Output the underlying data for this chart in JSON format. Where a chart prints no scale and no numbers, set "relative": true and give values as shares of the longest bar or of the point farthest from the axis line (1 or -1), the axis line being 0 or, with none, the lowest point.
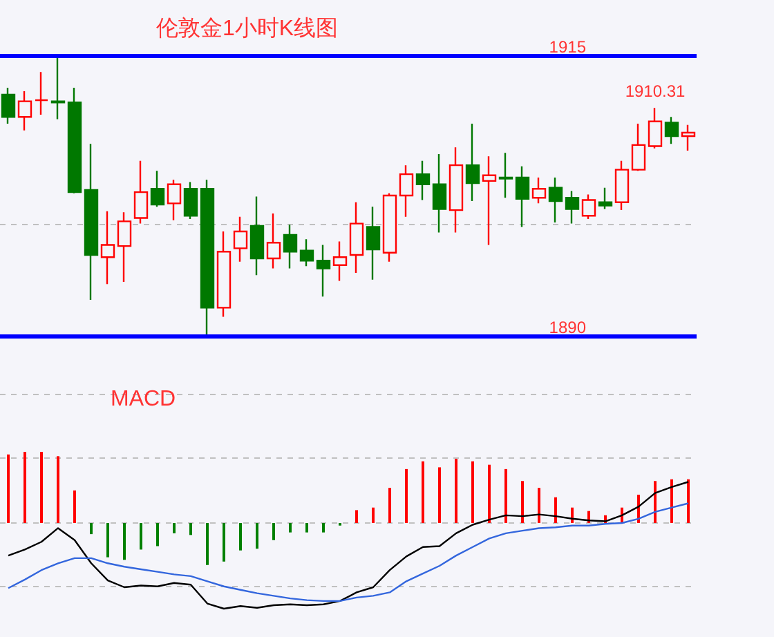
{
  "chart_data": [
    {
      "type": "candlestick",
      "title": "伦敦金1小时K线图",
      "categories": [
        null,
        null,
        null,
        null,
        null,
        null,
        null,
        null,
        null,
        null,
        null,
        null,
        null,
        null,
        null,
        null,
        null,
        null,
        null,
        null,
        null,
        null,
        null,
        null,
        null,
        null,
        null,
        null,
        null,
        null,
        null,
        null,
        null,
        null,
        null,
        null,
        null,
        null,
        null,
        null,
        null,
        null
      ],
      "ohlc": [
        [
          1911.5,
          1912.1,
          1908.9,
          1909.5
        ],
        [
          1909.5,
          1911.8,
          1908.3,
          1910.9
        ],
        [
          1911.0,
          1913.5,
          1909.7,
          1911.0
        ],
        [
          1910.9,
          1914.9,
          1909.3,
          1910.8
        ],
        [
          1910.8,
          1912.1,
          1902.7,
          1902.8
        ],
        [
          1903.0,
          1907.1,
          1893.2,
          1897.2
        ],
        [
          1897.0,
          1901.1,
          1894.6,
          1898.1
        ],
        [
          1898.0,
          1901.0,
          1894.8,
          1900.2
        ],
        [
          1900.5,
          1905.6,
          1900.0,
          1902.8
        ],
        [
          1903.1,
          1904.7,
          1901.5,
          1901.7
        ],
        [
          1901.8,
          1903.9,
          1900.3,
          1903.5
        ],
        [
          1903.1,
          1903.7,
          1900.4,
          1900.7
        ],
        [
          1903.1,
          1903.9,
          1890.0,
          1892.5
        ],
        [
          1892.5,
          1899.3,
          1891.7,
          1897.5
        ],
        [
          1897.8,
          1900.6,
          1896.6,
          1899.3
        ],
        [
          1899.8,
          1902.4,
          1895.4,
          1896.9
        ],
        [
          1896.9,
          1900.9,
          1896.0,
          1898.3
        ],
        [
          1899.0,
          1899.9,
          1896.0,
          1897.5
        ],
        [
          1897.6,
          1898.6,
          1896.2,
          1896.7
        ],
        [
          1896.7,
          1898.1,
          1893.5,
          1896.0
        ],
        [
          1896.3,
          1898.4,
          1894.9,
          1897.0
        ],
        [
          1897.2,
          1901.9,
          1895.6,
          1900.0
        ],
        [
          1899.7,
          1901.5,
          1895.0,
          1897.7
        ],
        [
          1897.4,
          1902.7,
          1896.6,
          1902.5
        ],
        [
          1902.5,
          1905.2,
          1900.6,
          1904.4
        ],
        [
          1904.4,
          1905.6,
          1902.1,
          1903.5
        ],
        [
          1903.5,
          1906.2,
          1899.2,
          1901.3
        ],
        [
          1901.2,
          1906.8,
          1899.2,
          1905.2
        ],
        [
          1905.2,
          1908.9,
          1902.0,
          1903.6
        ],
        [
          1903.8,
          1906.0,
          1898.1,
          1904.3
        ],
        [
          1904.1,
          1906.3,
          1902.3,
          1904.0
        ],
        [
          1904.1,
          1905.1,
          1899.7,
          1902.2
        ],
        [
          1902.3,
          1904.1,
          1901.8,
          1903.1
        ],
        [
          1903.2,
          1904.1,
          1900.1,
          1902.0
        ],
        [
          1902.3,
          1902.9,
          1900.0,
          1901.3
        ],
        [
          1900.7,
          1902.6,
          1900.4,
          1902.1
        ],
        [
          1901.9,
          1903.2,
          1901.3,
          1901.6
        ],
        [
          1901.9,
          1905.6,
          1901.2,
          1904.8
        ],
        [
          1904.8,
          1908.9,
          1904.7,
          1907.0
        ],
        [
          1906.9,
          1910.31,
          1906.7,
          1909.1
        ],
        [
          1909.0,
          1909.5,
          1907.1,
          1907.8
        ],
        [
          1907.8,
          1908.8,
          1906.5,
          1908.1
        ]
      ],
      "colors": [
        "#007800",
        "#ff0000",
        "#ff0000",
        "#007800",
        "#007800",
        "#007800",
        "#ff0000",
        "#ff0000",
        "#ff0000",
        "#007800",
        "#ff0000",
        "#007800",
        "#007800",
        "#ff0000",
        "#ff0000",
        "#007800",
        "#ff0000",
        "#007800",
        "#007800",
        "#007800",
        "#ff0000",
        "#ff0000",
        "#007800",
        "#ff0000",
        "#ff0000",
        "#007800",
        "#007800",
        "#ff0000",
        "#007800",
        "#ff0000",
        "#007800",
        "#007800",
        "#ff0000",
        "#007800",
        "#007800",
        "#ff0000",
        "#007800",
        "#ff0000",
        "#ff0000",
        "#ff0000",
        "#007800",
        "#ff0000"
      ],
      "ylim": [
        1890,
        1915
      ],
      "yticks": [
        {
          "value": 1900,
          "label": null
        }
      ],
      "grid": "y",
      "tick_labels": false,
      "ref_lines": [
        {
          "axis": "y",
          "value": 1915,
          "label": "1915",
          "color": "#0000ff"
        },
        {
          "axis": "y",
          "value": 1890,
          "label": "1890",
          "color": "#0000ff"
        }
      ],
      "annotations": [
        {
          "text": "1910.31",
          "y": 1910.31
        }
      ]
    },
    {
      "type": "bar",
      "title": "MACD",
      "relative": true,
      "tick_labels": false,
      "marker": "none",
      "ref_lines": [
        {
          "axis": "y",
          "value": 1.5,
          "color": "#c0c0c0",
          "line_style": "dashed"
        },
        {
          "axis": "y",
          "value": 0.76,
          "color": "#c0c0c0",
          "line_style": "dashed"
        },
        {
          "axis": "y",
          "value": 0,
          "color": "#c0c0c0",
          "line_style": "dashed"
        },
        {
          "axis": "y",
          "value": -0.74,
          "color": "#c0c0c0",
          "line_style": "dashed"
        }
      ],
      "categories": [
        null,
        null,
        null,
        null,
        null,
        null,
        null,
        null,
        null,
        null,
        null,
        null,
        null,
        null,
        null,
        null,
        null,
        null,
        null,
        null,
        null,
        null,
        null,
        null,
        null,
        null,
        null,
        null,
        null,
        null,
        null,
        null,
        null,
        null,
        null,
        null,
        null,
        null,
        null,
        null,
        null,
        null
      ],
      "series": [
        {
          "type": "bar",
          "colors": [
            "#ff0000",
            "#ff0000",
            "#ff0000",
            "#ff0000",
            "#ff0000",
            "#008000",
            "#008000",
            "#008000",
            "#008000",
            "#008000",
            "#008000",
            "#008000",
            "#008000",
            "#008000",
            "#008000",
            "#008000",
            "#008000",
            "#008000",
            "#008000",
            "#008000",
            "#008000",
            "#ff0000",
            "#ff0000",
            "#ff0000",
            "#ff0000",
            "#ff0000",
            "#ff0000",
            "#ff0000",
            "#ff0000",
            "#ff0000",
            "#ff0000",
            "#ff0000",
            "#ff0000",
            "#ff0000",
            "#ff0000",
            "#ff0000",
            "#ff0000",
            "#ff0000",
            "#ff0000",
            "#ff0000",
            "#ff0000",
            "#ff0000"
          ],
          "values": [
            0.8,
            0.83,
            0.83,
            0.78,
            0.38,
            -0.13,
            -0.4,
            -0.43,
            -0.31,
            -0.27,
            -0.12,
            -0.14,
            -0.49,
            -0.45,
            -0.32,
            -0.3,
            -0.2,
            -0.11,
            -0.11,
            -0.11,
            -0.03,
            0.15,
            0.18,
            0.41,
            0.63,
            0.72,
            0.65,
            0.75,
            0.72,
            0.68,
            0.63,
            0.49,
            0.41,
            0.3,
            0.18,
            0.14,
            0.09,
            0.18,
            0.33,
            0.49,
            0.51,
            0.51
          ]
        },
        {
          "type": "line",
          "color": "#000000",
          "values": [
            -0.38,
            -0.31,
            -0.22,
            -0.06,
            -0.2,
            -0.47,
            -0.67,
            -0.75,
            -0.73,
            -0.74,
            -0.7,
            -0.72,
            -0.94,
            -1.0,
            -0.97,
            -0.99,
            -0.96,
            -0.95,
            -0.96,
            -0.95,
            -0.91,
            -0.81,
            -0.75,
            -0.55,
            -0.39,
            -0.28,
            -0.27,
            -0.12,
            -0.02,
            0.04,
            0.09,
            0.08,
            0.1,
            0.08,
            0.05,
            0.03,
            0.02,
            0.09,
            0.19,
            0.35,
            0.42,
            0.48
          ]
        },
        {
          "type": "line",
          "color": "#3366dd",
          "values": [
            -0.76,
            -0.66,
            -0.55,
            -0.47,
            -0.41,
            -0.41,
            -0.47,
            -0.51,
            -0.54,
            -0.57,
            -0.6,
            -0.62,
            -0.68,
            -0.74,
            -0.78,
            -0.82,
            -0.85,
            -0.88,
            -0.9,
            -0.91,
            -0.91,
            -0.87,
            -0.85,
            -0.81,
            -0.68,
            -0.59,
            -0.5,
            -0.38,
            -0.28,
            -0.18,
            -0.12,
            -0.09,
            -0.06,
            -0.05,
            -0.03,
            -0.03,
            -0.01,
            0.0,
            0.05,
            0.13,
            0.18,
            0.23
          ]
        }
      ]
    }
  ]
}
